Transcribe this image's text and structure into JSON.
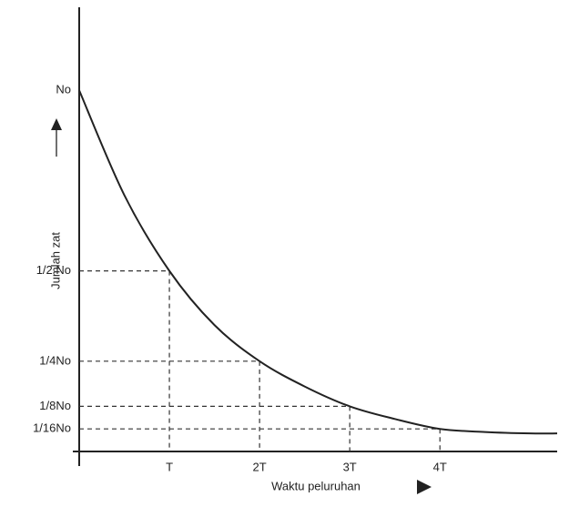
{
  "chart_data": {
    "type": "line",
    "x_label": "Waktu peluruhan",
    "y_label": "Jumlah zat",
    "x": [
      0,
      0.5,
      1,
      1.5,
      2,
      2.5,
      3,
      3.5,
      4,
      4.5,
      5,
      5.3
    ],
    "series": [
      {
        "color": "#222222",
        "values": [
          1,
          0.71,
          0.5,
          0.35,
          0.25,
          0.18,
          0.125,
          0.09,
          0.0625,
          0.054,
          0.05,
          0.05
        ]
      }
    ],
    "xlim": [
      0,
      5.3
    ],
    "ylim": [
      0,
      1.23
    ],
    "xticks": [
      {
        "value": 1,
        "label": "T"
      },
      {
        "value": 2,
        "label": "2T"
      },
      {
        "value": 3,
        "label": "3T"
      },
      {
        "value": 4,
        "label": "4T"
      }
    ],
    "yticks": [
      {
        "value": 1,
        "label": "No"
      },
      {
        "value": 0.5,
        "label": "1/2 No"
      },
      {
        "value": 0.25,
        "label": "1/4No"
      },
      {
        "value": 0.125,
        "label": "1/8No"
      },
      {
        "value": 0.0625,
        "label": "1/16No"
      }
    ],
    "grid": false
  }
}
